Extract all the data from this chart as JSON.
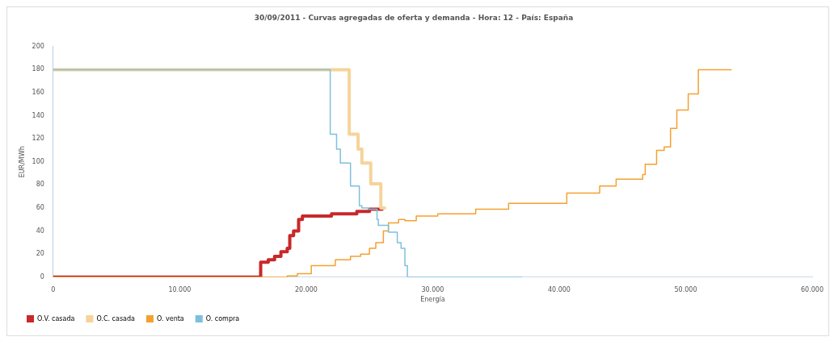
{
  "chart_data": {
    "type": "step",
    "title": "30/09/2011 - Curvas agregadas de oferta y demanda - Hora: 12 - País: España",
    "xlabel": "Energía",
    "ylabel": "EUR/MWh",
    "xlim": [
      0,
      60000
    ],
    "xticks": [
      0,
      {
        "value": 10000,
        "label": "10.000"
      },
      {
        "value": 20000,
        "label": "20.000"
      },
      {
        "value": 30000,
        "label": "30.000"
      },
      {
        "value": 40000,
        "label": "40.000"
      },
      {
        "value": 50000,
        "label": "50.000"
      },
      {
        "value": 60000,
        "label": "60.000"
      }
    ],
    "ylim": [
      0,
      200
    ],
    "yticks": [
      0,
      20,
      40,
      60,
      80,
      100,
      120,
      140,
      160,
      180,
      200
    ],
    "grid": false,
    "legend": "bottom left",
    "marker": "none",
    "line_style": "solid",
    "series": [
      {
        "name": "O.V. casada",
        "color": "#c8282a",
        "x": [
          0,
          16300,
          16400,
          17000,
          17500,
          18000,
          18500,
          18700,
          19000,
          19400,
          19700,
          21000,
          22000,
          24000,
          25000,
          26000
        ],
        "values": [
          0,
          0,
          13,
          15,
          18,
          22,
          25,
          36,
          40,
          50,
          53,
          53,
          55,
          57,
          59,
          60
        ]
      },
      {
        "name": "O.C. casada",
        "color": "#f5d49a",
        "x": [
          0,
          23400,
          24100,
          24400,
          25100,
          25900,
          26200
        ],
        "values": [
          180,
          124,
          111,
          99,
          81,
          60,
          60
        ]
      },
      {
        "name": "O. venta",
        "color": "#f5a030",
        "x": [
          0,
          16500,
          18500,
          19300,
          20400,
          22300,
          23500,
          24300,
          25000,
          25500,
          26100,
          26500,
          27300,
          27800,
          28700,
          30400,
          33400,
          35200,
          36000,
          40600,
          43200,
          44000,
          44500,
          45800,
          46600,
          46800,
          47700,
          48300,
          48800,
          49300,
          50200,
          51000,
          53600
        ],
        "values": [
          0,
          0,
          1,
          3,
          10,
          15,
          18,
          20,
          25,
          30,
          40,
          47,
          50,
          49,
          53,
          55,
          59,
          59,
          64,
          73,
          79,
          79,
          85,
          85,
          89,
          98,
          110,
          113,
          129,
          145,
          159,
          180,
          180
        ]
      },
      {
        "name": "O. compra",
        "color": "#7ec0dc",
        "x": [
          0,
          21900,
          22400,
          22700,
          23500,
          24200,
          24400,
          24900,
          25600,
          25700,
          26500,
          27200,
          27500,
          27800,
          28000,
          37000
        ],
        "values": [
          180,
          124,
          111,
          99,
          79,
          62,
          60,
          59,
          50,
          45,
          39,
          30,
          25,
          10,
          0,
          0
        ]
      }
    ]
  }
}
